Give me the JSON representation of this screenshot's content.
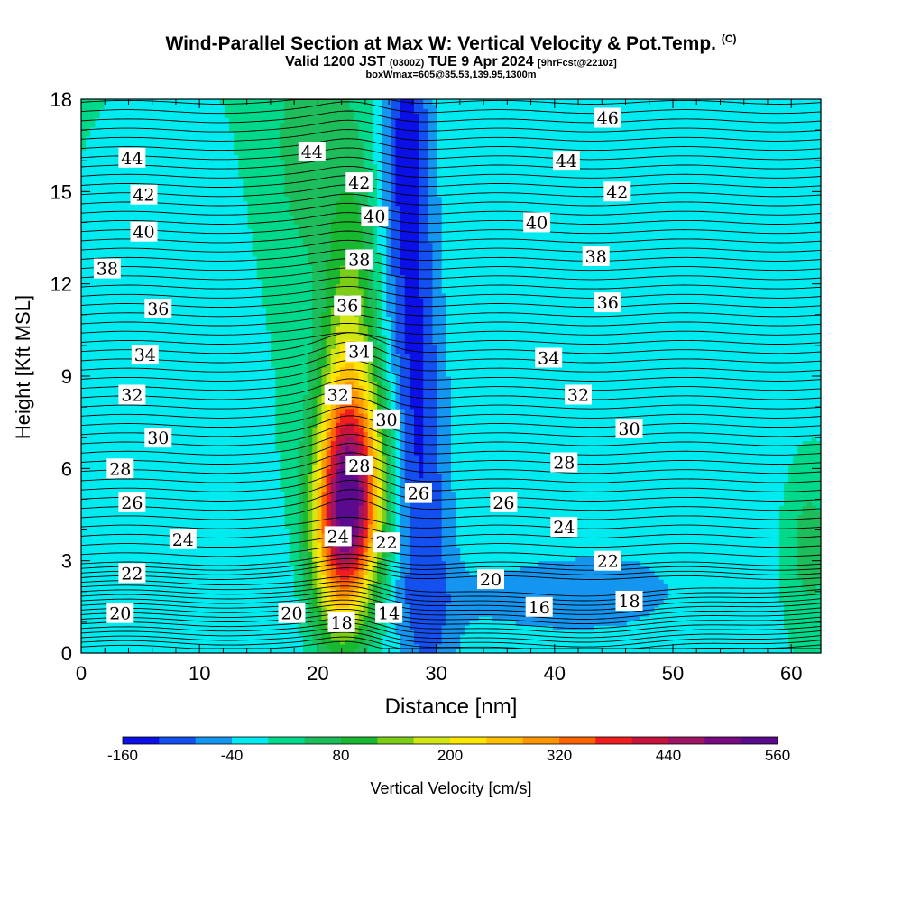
{
  "title": {
    "main": "Wind-Parallel Section at Max W: Vertical Velocity & Pot.Temp.",
    "copyright": "(C)",
    "valid_prefix": "Valid 1200 JST",
    "utc": "(0300Z)",
    "valid_date": "TUE 9 Apr 2024",
    "forecast": "[9hrFcst@2210z]",
    "box": "boxWmax=605@35.53,139.95,1300m"
  },
  "chart_data": {
    "type": "heatmap",
    "xlabel": "Distance [nm]",
    "ylabel": "Height [Kft MSL]",
    "xlim": [
      0,
      62.5
    ],
    "ylim": [
      0,
      18
    ],
    "x_ticks": [
      "0",
      "10",
      "20",
      "30",
      "40",
      "50",
      "60"
    ],
    "y_ticks": [
      "0",
      "3",
      "6",
      "9",
      "12",
      "15",
      "18"
    ],
    "colorbar": {
      "label": "Vertical Velocity [cm/s]",
      "min": -160,
      "max": 560,
      "step": 40,
      "tick_labels": [
        "-160",
        "-40",
        "80",
        "200",
        "320",
        "440",
        "560"
      ],
      "colors": [
        "#0a10e6",
        "#1450f0",
        "#1496f0",
        "#00ebf0",
        "#00d98a",
        "#1cbd5a",
        "#18b830",
        "#7bcd18",
        "#d2e614",
        "#ffe600",
        "#ffc000",
        "#ff9600",
        "#ff6400",
        "#f01e1e",
        "#c8143c",
        "#a01464",
        "#780a82",
        "#5a0a8c"
      ]
    },
    "vertical_velocity_features": [
      {
        "name": "updraft core",
        "x": 22.5,
        "y": 4.5,
        "value": 540
      },
      {
        "name": "downdraft core",
        "x": 28.0,
        "y": 17.0,
        "value": -150
      },
      {
        "name": "downdraft column",
        "x": 28.5,
        "y": 8.0,
        "value": -100
      }
    ],
    "theta_contours": [
      {
        "value": 14,
        "label": "14"
      },
      {
        "value": 16,
        "label": "16"
      },
      {
        "value": 18,
        "label": "18"
      },
      {
        "value": 20,
        "label": "20"
      },
      {
        "value": 22,
        "label": "22"
      },
      {
        "value": 24,
        "label": "24"
      },
      {
        "value": 26,
        "label": "26"
      },
      {
        "value": 28,
        "label": "28"
      },
      {
        "value": 30,
        "label": "30"
      },
      {
        "value": 32,
        "label": "32"
      },
      {
        "value": 34,
        "label": "34"
      },
      {
        "value": 36,
        "label": "36"
      },
      {
        "value": 38,
        "label": "38"
      },
      {
        "value": 40,
        "label": "40"
      },
      {
        "value": 42,
        "label": "42"
      },
      {
        "value": 44,
        "label": "44"
      },
      {
        "value": 46,
        "label": "46"
      }
    ],
    "contour_labels": [
      {
        "label": "46",
        "x": 44.5,
        "y": 17.4
      },
      {
        "label": "44",
        "x": 4.3,
        "y": 16.1
      },
      {
        "label": "44",
        "x": 19.5,
        "y": 16.3
      },
      {
        "label": "44",
        "x": 41.0,
        "y": 16.0
      },
      {
        "label": "42",
        "x": 5.3,
        "y": 14.9
      },
      {
        "label": "42",
        "x": 23.5,
        "y": 15.3
      },
      {
        "label": "42",
        "x": 45.3,
        "y": 15.0
      },
      {
        "label": "40",
        "x": 5.3,
        "y": 13.7
      },
      {
        "label": "40",
        "x": 24.8,
        "y": 14.2
      },
      {
        "label": "40",
        "x": 38.5,
        "y": 14.0
      },
      {
        "label": "38",
        "x": 2.2,
        "y": 12.5
      },
      {
        "label": "38",
        "x": 23.5,
        "y": 12.8
      },
      {
        "label": "38",
        "x": 43.5,
        "y": 12.9
      },
      {
        "label": "36",
        "x": 6.5,
        "y": 11.2
      },
      {
        "label": "36",
        "x": 22.5,
        "y": 11.3
      },
      {
        "label": "36",
        "x": 44.5,
        "y": 11.4
      },
      {
        "label": "34",
        "x": 5.4,
        "y": 9.7
      },
      {
        "label": "34",
        "x": 23.5,
        "y": 9.8
      },
      {
        "label": "34",
        "x": 39.5,
        "y": 9.6
      },
      {
        "label": "32",
        "x": 4.3,
        "y": 8.4
      },
      {
        "label": "32",
        "x": 21.7,
        "y": 8.4
      },
      {
        "label": "32",
        "x": 42.0,
        "y": 8.4
      },
      {
        "label": "30",
        "x": 6.5,
        "y": 7.0
      },
      {
        "label": "30",
        "x": 25.8,
        "y": 7.6
      },
      {
        "label": "30",
        "x": 46.3,
        "y": 7.3
      },
      {
        "label": "28",
        "x": 3.3,
        "y": 6.0
      },
      {
        "label": "28",
        "x": 23.5,
        "y": 6.1
      },
      {
        "label": "28",
        "x": 40.8,
        "y": 6.2
      },
      {
        "label": "26",
        "x": 4.3,
        "y": 4.9
      },
      {
        "label": "26",
        "x": 28.5,
        "y": 5.2
      },
      {
        "label": "26",
        "x": 35.7,
        "y": 4.9
      },
      {
        "label": "24",
        "x": 8.6,
        "y": 3.7
      },
      {
        "label": "24",
        "x": 21.7,
        "y": 3.8
      },
      {
        "label": "24",
        "x": 40.8,
        "y": 4.1
      },
      {
        "label": "22",
        "x": 4.3,
        "y": 2.6
      },
      {
        "label": "22",
        "x": 25.8,
        "y": 3.6
      },
      {
        "label": "22",
        "x": 44.5,
        "y": 3.0
      },
      {
        "label": "20",
        "x": 3.3,
        "y": 1.3
      },
      {
        "label": "20",
        "x": 17.8,
        "y": 1.3
      },
      {
        "label": "20",
        "x": 34.6,
        "y": 2.4
      },
      {
        "label": "18",
        "x": 22.0,
        "y": 1.0
      },
      {
        "label": "18",
        "x": 46.3,
        "y": 1.7
      },
      {
        "label": "16",
        "x": 38.7,
        "y": 1.5
      },
      {
        "label": "14",
        "x": 26.0,
        "y": 1.3
      }
    ],
    "grid": false,
    "legend": "bottom"
  }
}
